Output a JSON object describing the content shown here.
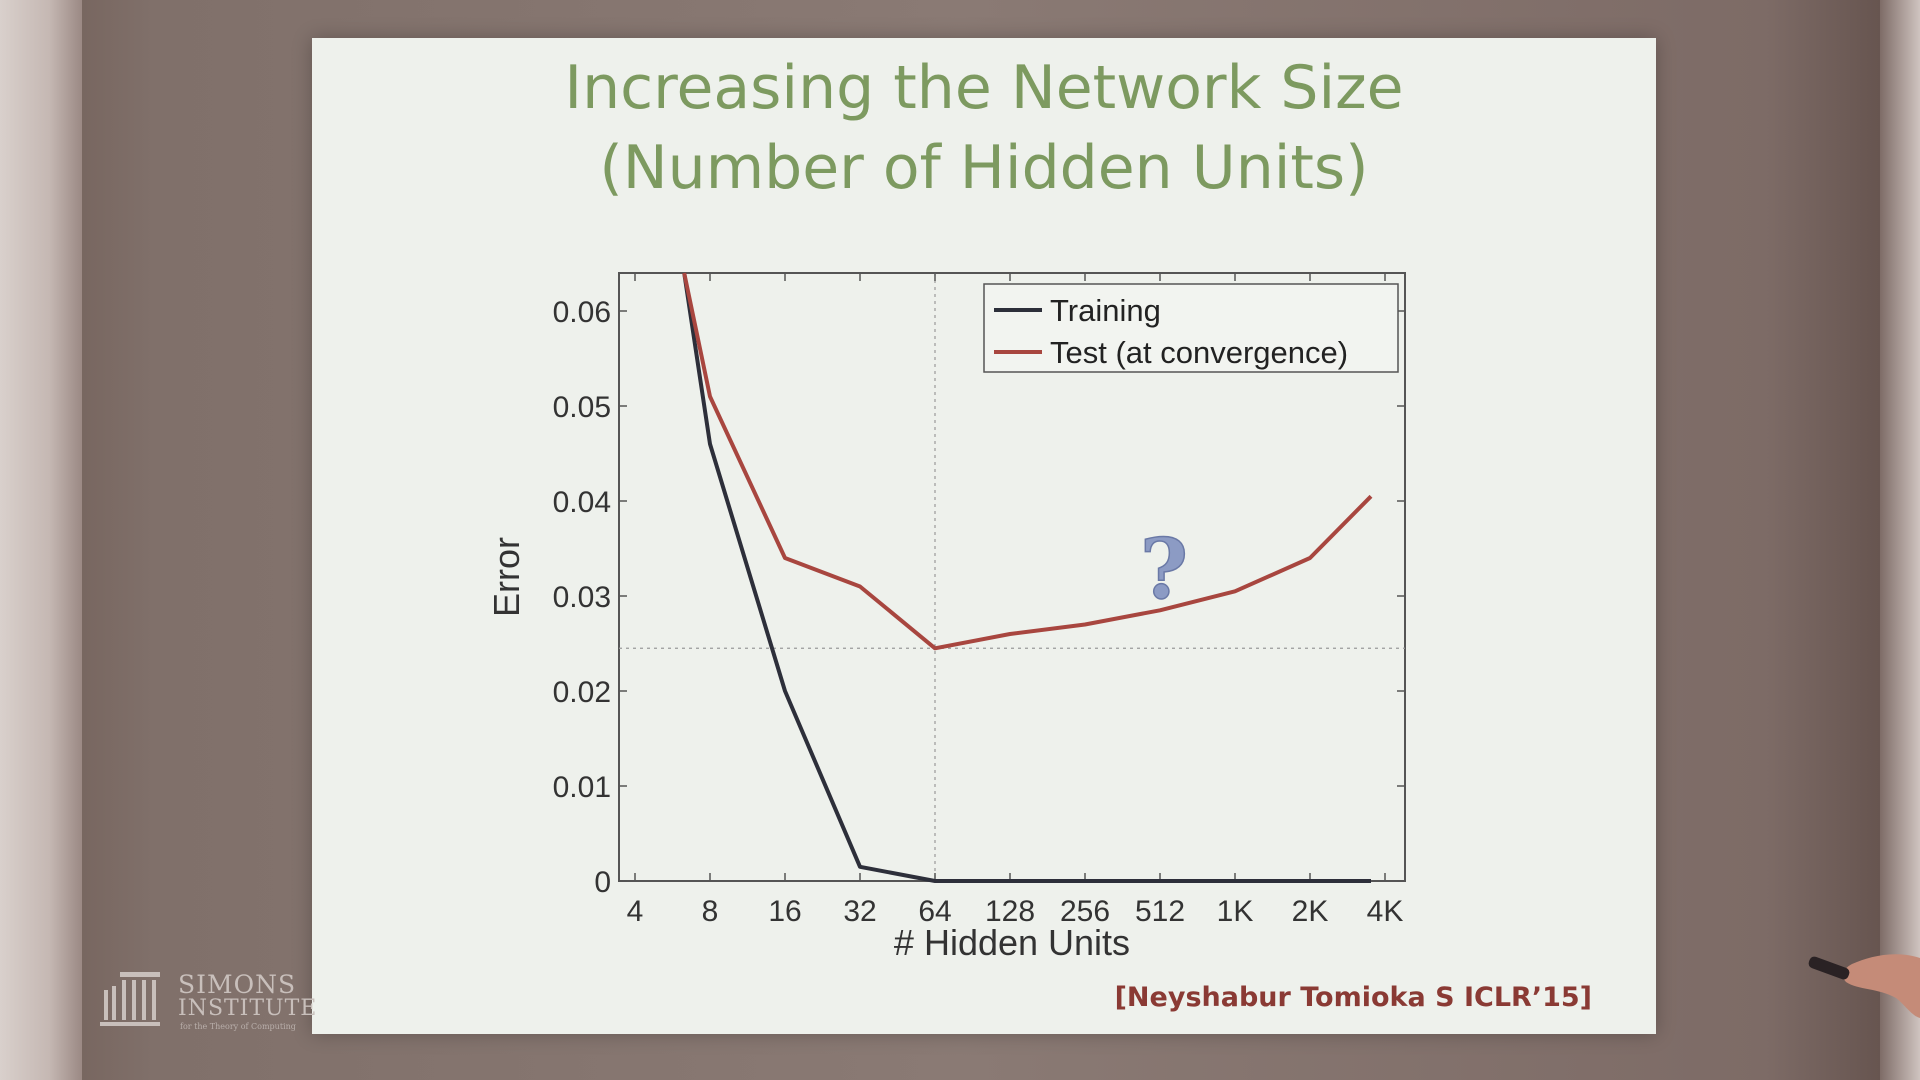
{
  "slide": {
    "title_line1": "Increasing the Network Size",
    "title_line2": "(Number of Hidden Units)",
    "citation": "[Neyshabur Tomioka S ICLR’15]"
  },
  "logo": {
    "name_line1": "SIMONS",
    "name_line2": "INSTITUTE",
    "tagline": "for the Theory of Computing"
  },
  "annotation": "?",
  "colors": {
    "title": "#7d9a60",
    "training": "#2d2f3a",
    "test": "#a8463f",
    "question": "#8c9bc4",
    "citation": "#8a3a34"
  },
  "chart_data": {
    "type": "line",
    "xlabel": "# Hidden Units",
    "ylabel": "Error",
    "x_scale": "log2",
    "categories": [
      "4",
      "8",
      "16",
      "32",
      "64",
      "128",
      "256",
      "512",
      "1K",
      "2K",
      "4K"
    ],
    "x_values": [
      4,
      8,
      16,
      32,
      64,
      128,
      256,
      512,
      1024,
      2048,
      4096
    ],
    "yticks": [
      "0",
      "0.01",
      "0.02",
      "0.03",
      "0.04",
      "0.05",
      "0.06"
    ],
    "ylim": [
      0,
      0.064
    ],
    "reference_x": 64,
    "reference_y": 0.0245,
    "legend_position": "top-right",
    "series": [
      {
        "name": "Training",
        "color": "#2d2f3a",
        "x": [
          6.3,
          8,
          16,
          32,
          64,
          128,
          256,
          512,
          1024,
          2048,
          3600
        ],
        "y": [
          0.064,
          0.046,
          0.02,
          0.0015,
          0.0,
          0.0,
          0.0,
          0.0,
          0.0,
          0.0,
          0.0
        ]
      },
      {
        "name": "Test (at convergence)",
        "color": "#a8463f",
        "x": [
          6.3,
          8,
          16,
          32,
          64,
          128,
          256,
          512,
          1024,
          2048,
          3600
        ],
        "y": [
          0.064,
          0.051,
          0.034,
          0.031,
          0.0245,
          0.026,
          0.027,
          0.0285,
          0.0305,
          0.034,
          0.0405
        ]
      }
    ]
  }
}
